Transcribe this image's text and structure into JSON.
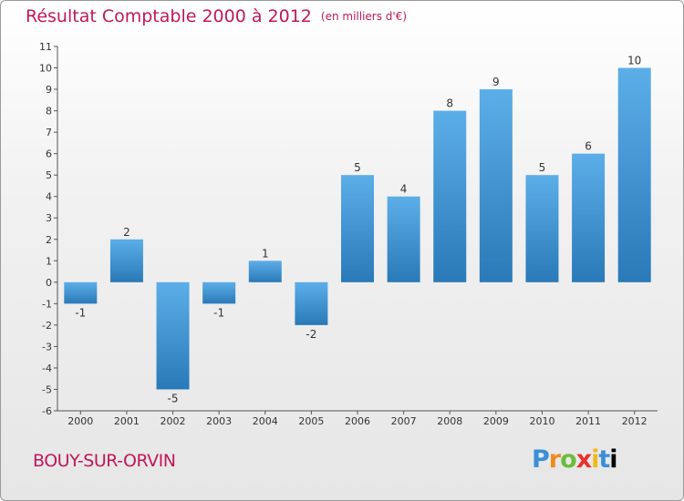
{
  "header": {
    "title": "Résultat Comptable 2000 à 2012",
    "unit": "(en milliers d'€)"
  },
  "footer": {
    "place": "BOUY-SUR-ORVIN",
    "brand": "Proxiti"
  },
  "colors": {
    "accent": "#c0185a",
    "bar_light": "#5caee8",
    "bar_dark": "#2a79b8",
    "axis": "#555555"
  },
  "chart_data": {
    "type": "bar",
    "title": "Résultat Comptable 2000 à 2012",
    "xlabel": "",
    "ylabel": "",
    "categories": [
      "2000",
      "2001",
      "2002",
      "2003",
      "2004",
      "2005",
      "2006",
      "2007",
      "2008",
      "2009",
      "2010",
      "2011",
      "2012"
    ],
    "values": [
      -1,
      2,
      -5,
      -1,
      1,
      -2,
      5,
      4,
      8,
      9,
      5,
      6,
      10
    ],
    "ylim": [
      -6,
      11
    ],
    "yticks": [
      "-6",
      "-5",
      "-4",
      "-3",
      "-2",
      "-1",
      "0",
      "1",
      "2",
      "3",
      "4",
      "5",
      "6",
      "7",
      "8",
      "9",
      "10",
      "11"
    ],
    "grid": false
  }
}
